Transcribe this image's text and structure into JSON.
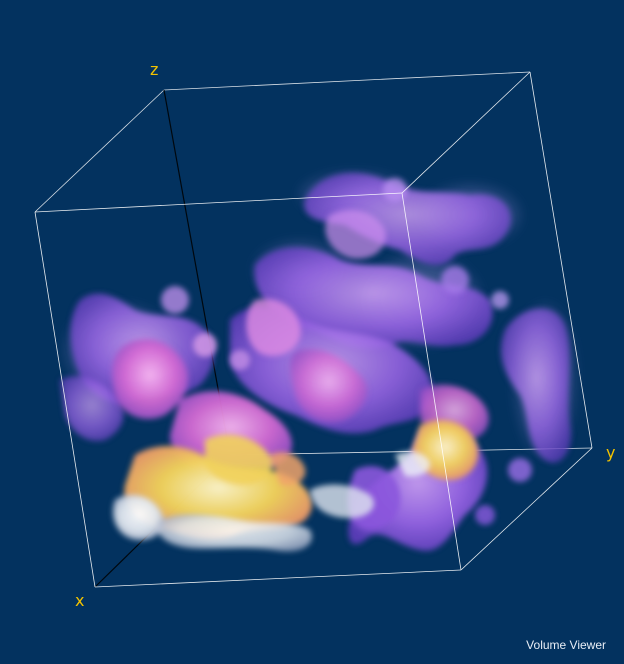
{
  "viewer": {
    "title": "Volume Viewer",
    "background_color": "#03325f",
    "box_color": "#ffffff"
  },
  "axes": {
    "x_label": "x",
    "y_label": "y",
    "z_label": "z",
    "label_color": "#f2c200"
  },
  "volume": {
    "colormap": [
      "#f6ecb0",
      "#f3d866",
      "#ee9c72",
      "#d968d0",
      "#9d62e6",
      "#7449d6"
    ],
    "opacity_style": "translucent iso-surface"
  }
}
